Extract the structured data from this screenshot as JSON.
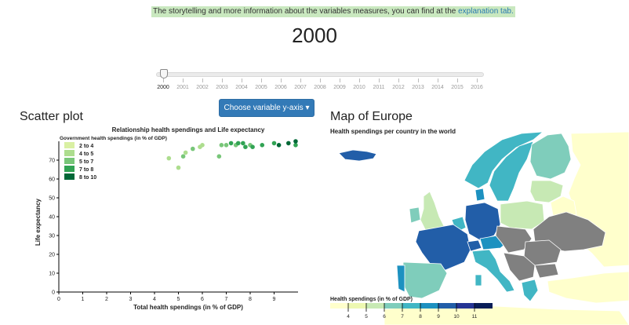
{
  "banner": {
    "text": "The storytelling and more information about the variables measures, you can find at the ",
    "link": "explanation tab."
  },
  "year": "2000",
  "slider": {
    "years": [
      "2000",
      "2001",
      "2002",
      "2003",
      "2004",
      "2005",
      "2006",
      "2007",
      "2008",
      "2009",
      "2010",
      "2011",
      "2012",
      "2013",
      "2014",
      "2015",
      "2016"
    ],
    "selected": "2000"
  },
  "yaxis_button": "Choose variable y-axis ▾",
  "scatter": {
    "section_title": "Scatter plot",
    "legend_title": "Government health spendings (in % of GDP)",
    "legend": [
      {
        "label": "2 to 4",
        "color": "#d9f0a3"
      },
      {
        "label": "4 to 5",
        "color": "#addd8e"
      },
      {
        "label": "5 to 7",
        "color": "#78c679"
      },
      {
        "label": "7 to 8",
        "color": "#31a354"
      },
      {
        "label": "8 to 10",
        "color": "#006837"
      }
    ]
  },
  "map": {
    "section_title": "Map of Europe",
    "subtitle": "Health spendings per country in the world",
    "legend_title": "Health spendings (in % of GDP)",
    "legend_ticks": [
      "4",
      "5",
      "6",
      "7",
      "8",
      "9",
      "10",
      "11"
    ],
    "scale_colors": [
      "#ffffcc",
      "#edf8b1",
      "#c7e9b4",
      "#7fcdbb",
      "#41b6c4",
      "#1d91c0",
      "#225ea8",
      "#253494",
      "#081d58"
    ],
    "no_data_color": "#808080"
  },
  "chart_data": {
    "type": "scatter",
    "title": "Relationship health spendings and Life expectancy",
    "xlabel": "Total health spendings (in % of GDP)",
    "ylabel": "Life expectancy",
    "xlim": [
      0,
      10
    ],
    "ylim": [
      0,
      80
    ],
    "xticks": [
      0,
      1,
      2,
      3,
      4,
      5,
      6,
      7,
      8,
      9
    ],
    "yticks": [
      0,
      10,
      20,
      30,
      40,
      50,
      60,
      70
    ],
    "points": [
      {
        "x": 4.6,
        "y": 71,
        "group": 1
      },
      {
        "x": 5.0,
        "y": 66,
        "group": 1
      },
      {
        "x": 5.2,
        "y": 72,
        "group": 2
      },
      {
        "x": 5.3,
        "y": 74,
        "group": 1
      },
      {
        "x": 5.6,
        "y": 76,
        "group": 2
      },
      {
        "x": 5.9,
        "y": 77,
        "group": 1
      },
      {
        "x": 6.0,
        "y": 78,
        "group": 1
      },
      {
        "x": 6.7,
        "y": 72,
        "group": 2
      },
      {
        "x": 6.8,
        "y": 78,
        "group": 2
      },
      {
        "x": 7.0,
        "y": 78,
        "group": 2
      },
      {
        "x": 7.2,
        "y": 79,
        "group": 3
      },
      {
        "x": 7.4,
        "y": 78,
        "group": 2
      },
      {
        "x": 7.5,
        "y": 79,
        "group": 3
      },
      {
        "x": 7.7,
        "y": 79,
        "group": 3
      },
      {
        "x": 7.8,
        "y": 77,
        "group": 3
      },
      {
        "x": 8.0,
        "y": 78,
        "group": 2
      },
      {
        "x": 8.1,
        "y": 77,
        "group": 3
      },
      {
        "x": 8.5,
        "y": 78,
        "group": 3
      },
      {
        "x": 9.0,
        "y": 79,
        "group": 3
      },
      {
        "x": 9.2,
        "y": 78,
        "group": 4
      },
      {
        "x": 9.6,
        "y": 79,
        "group": 4
      },
      {
        "x": 9.9,
        "y": 78,
        "group": 3
      },
      {
        "x": 9.9,
        "y": 80,
        "group": 4
      }
    ]
  }
}
